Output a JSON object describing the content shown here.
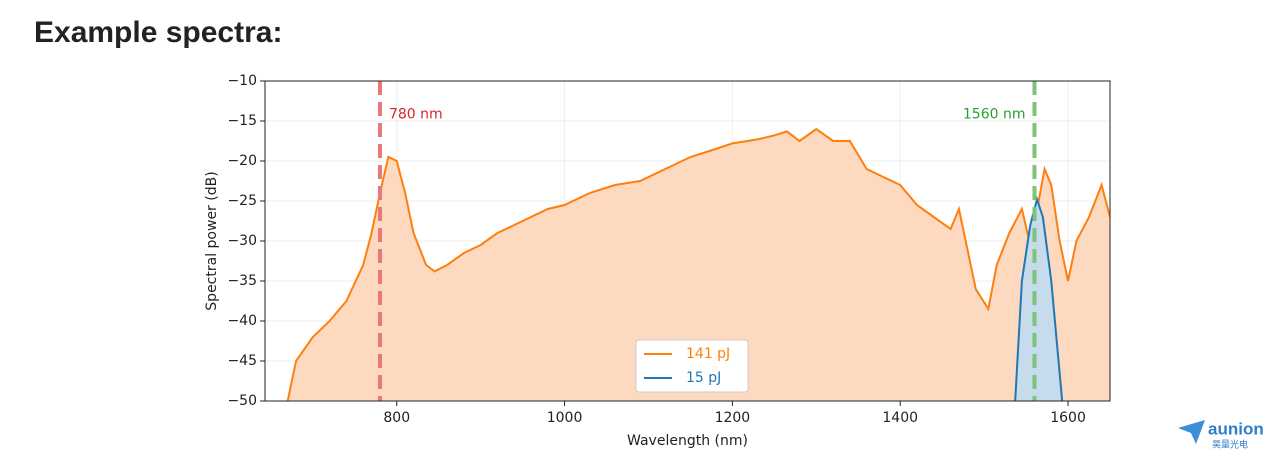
{
  "header": {
    "title": "Example spectra:"
  },
  "logo": {
    "name": "aunion",
    "subtitle": "昊量光电"
  },
  "chart_data": {
    "type": "line",
    "xlabel": "Wavelength (nm)",
    "ylabel": "Spectral power (dB)",
    "xlim": [
      643,
      1650
    ],
    "ylim": [
      -50,
      -10
    ],
    "xticks": [
      800,
      1000,
      1200,
      1400,
      1600
    ],
    "yticks": [
      {
        "value": -10,
        "label": "−10"
      },
      {
        "value": -15,
        "label": "−15"
      },
      {
        "value": -20,
        "label": "−20"
      },
      {
        "value": -25,
        "label": "−25"
      },
      {
        "value": -30,
        "label": "−30"
      },
      {
        "value": -35,
        "label": "−35"
      },
      {
        "value": -40,
        "label": "−40"
      },
      {
        "value": -45,
        "label": "−45"
      },
      {
        "value": -50,
        "label": "−50"
      }
    ],
    "grid": true,
    "legend": "lower center",
    "series": [
      {
        "name": "141 pJ",
        "color": "#ff7f0e",
        "fill": "#fdd9bf",
        "x": [
          670,
          680,
          700,
          720,
          740,
          760,
          770,
          780,
          790,
          800,
          810,
          820,
          835,
          845,
          860,
          880,
          900,
          920,
          950,
          980,
          1000,
          1030,
          1060,
          1090,
          1120,
          1150,
          1180,
          1200,
          1230,
          1250,
          1265,
          1280,
          1300,
          1320,
          1340,
          1360,
          1380,
          1400,
          1420,
          1440,
          1460,
          1470,
          1480,
          1490,
          1505,
          1515,
          1530,
          1545,
          1555,
          1565,
          1572,
          1580,
          1590,
          1600,
          1610,
          1625,
          1640,
          1650
        ],
        "values": [
          -50,
          -45,
          -42,
          -40,
          -37.5,
          -33,
          -29,
          -24,
          -19.5,
          -20,
          -24,
          -29,
          -33,
          -33.8,
          -33,
          -31.5,
          -30.5,
          -29,
          -27.5,
          -26,
          -25.5,
          -24,
          -23,
          -22.5,
          -21,
          -19.5,
          -18.5,
          -17.8,
          -17.3,
          -16.8,
          -16.3,
          -17.5,
          -16,
          -17.5,
          -17.5,
          -21,
          -22,
          -23,
          -25.5,
          -27,
          -28.5,
          -26,
          -31,
          -36,
          -38.5,
          -33,
          -29,
          -26,
          -30.5,
          -25,
          -21,
          -23,
          -30,
          -35,
          -30,
          -27,
          -23,
          -27
        ]
      },
      {
        "name": "15 pJ",
        "color": "#1f77b4",
        "fill": "#c6dbeb",
        "x": [
          1537,
          1545,
          1555,
          1563,
          1570,
          1580,
          1593
        ],
        "values": [
          -50,
          -35,
          -28,
          -24.8,
          -27,
          -35,
          -50
        ]
      }
    ],
    "vlines": [
      {
        "x": 780,
        "label": "780 nm",
        "color": "#e8787a"
      },
      {
        "x": 1560,
        "label": "1560 nm",
        "color": "#7dc47a"
      }
    ]
  }
}
